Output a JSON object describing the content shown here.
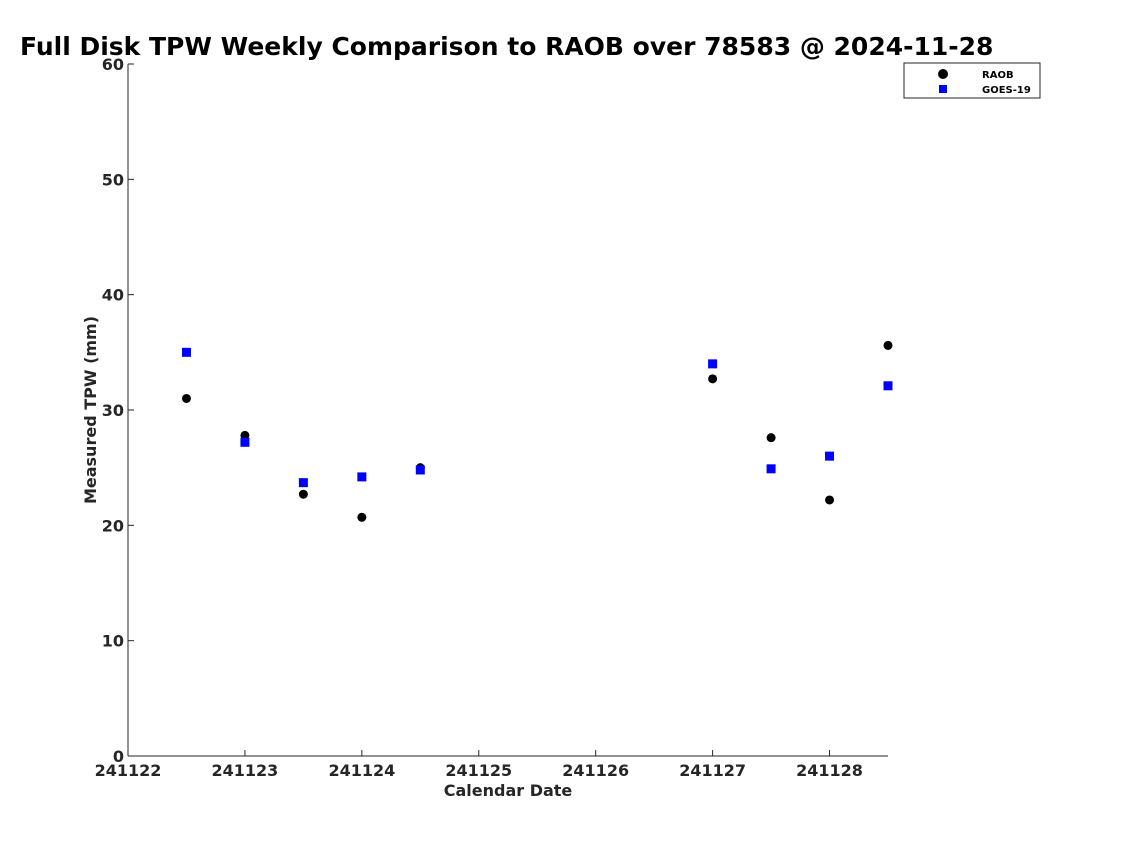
{
  "chart_data": {
    "type": "scatter",
    "title": "Full Disk TPW Weekly Comparison to RAOB over 78583 @ 2024-11-28",
    "xlabel": "Calendar Date",
    "ylabel": "Measured TPW (mm)",
    "xlim": [
      0,
      6.5
    ],
    "ylim": [
      0,
      60
    ],
    "x_tick_values": [
      0,
      1,
      2,
      3,
      4,
      5,
      6
    ],
    "x_tick_labels": [
      "241122",
      "241123",
      "241124",
      "241125",
      "241126",
      "241127",
      "241128"
    ],
    "y_tick_values": [
      0,
      10,
      20,
      30,
      40,
      50,
      60
    ],
    "y_tick_labels": [
      "0",
      "10",
      "20",
      "30",
      "40",
      "50",
      "60"
    ],
    "legend_position": "top-right",
    "series": [
      {
        "name": "RAOB",
        "marker": "circle",
        "color": "#000000",
        "x": [
          0.5,
          1.0,
          1.5,
          2.0,
          2.5,
          5.0,
          5.5,
          6.0,
          6.5
        ],
        "y": [
          31.0,
          27.8,
          22.7,
          20.7,
          25.0,
          32.7,
          27.6,
          22.2,
          35.6
        ]
      },
      {
        "name": "GOES-19",
        "marker": "square",
        "color": "#0000ff",
        "x": [
          0.5,
          1.0,
          1.5,
          2.0,
          2.5,
          5.0,
          5.5,
          6.0,
          6.5
        ],
        "y": [
          35.0,
          27.2,
          23.7,
          24.2,
          24.8,
          34.0,
          24.9,
          26.0,
          32.1
        ]
      }
    ]
  }
}
